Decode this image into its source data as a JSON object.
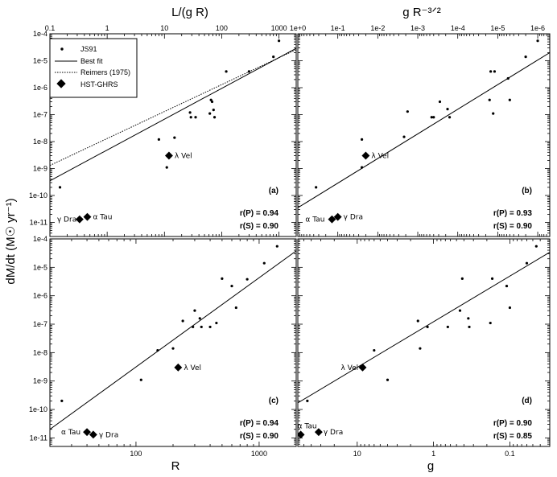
{
  "figure": {
    "y_axis_title": "dM/dt (M☉ yr⁻¹)",
    "top_left_title": "L/(g R)",
    "top_right_title": "g R⁻³ᐟ²",
    "bottom_left_title": "R",
    "bottom_right_title": "g"
  },
  "legend": {
    "js91": "JS91",
    "best_fit": "Best fit",
    "reimers": "Reimers (1975)",
    "hst": "HST-GHRS"
  },
  "chart_data": [
    {
      "type": "scatter",
      "panel": "(a)",
      "xlabel": "L/(g R)",
      "ylabel": "dM/dt (M☉ yr⁻¹)",
      "x_scale": "log",
      "y_scale": "log",
      "xlim": [
        0.1,
        2000
      ],
      "ylim": [
        3e-12,
        0.0001
      ],
      "x_tick_labels": [
        "0.1",
        "1",
        "10",
        "100",
        "1000"
      ],
      "y_tick_labels": [
        "1e-11",
        "1e-10",
        "1e-9",
        "1e-8",
        "1e-7",
        "1e-6",
        "1e-5",
        "1e-4"
      ],
      "stats": [
        "r(P) = 0.94",
        "r(S) = 0.90"
      ],
      "series": [
        {
          "name": "JS91",
          "points": [
            [
              0.15,
              2e-10
            ],
            [
              8,
              1.2e-08
            ],
            [
              11,
              1.1e-09
            ],
            [
              15,
              1.4e-08
            ],
            [
              28,
              1.2e-07
            ],
            [
              29,
              8e-08
            ],
            [
              35,
              8e-08
            ],
            [
              62,
              1.1e-07
            ],
            [
              65,
              3.5e-07
            ],
            [
              68,
              3e-07
            ],
            [
              72,
              1.5e-07
            ],
            [
              75,
              8e-08
            ],
            [
              120,
              4e-06
            ],
            [
              300,
              4e-06
            ],
            [
              800,
              1.4e-05
            ],
            [
              1000,
              5.5e-05
            ]
          ]
        },
        {
          "name": "HST-GHRS",
          "points": [
            [
              0.33,
              1.3e-11
            ],
            [
              0.45,
              1.6e-11
            ],
            [
              12,
              3e-09
            ]
          ]
        }
      ],
      "best_fit": [
        [
          0.1,
          3.5e-10
        ],
        [
          2000,
          2.9e-05
        ]
      ],
      "reimers": [
        [
          0.1,
          1.3e-09
        ],
        [
          2000,
          2.6e-05
        ]
      ],
      "annotations": [
        {
          "text": "γ Dra",
          "x": 0.33,
          "y": 1.3e-11
        },
        {
          "text": "α Tau",
          "x": 0.45,
          "y": 1.6e-11
        },
        {
          "text": "λ Vel",
          "x": 12,
          "y": 3e-09
        }
      ]
    },
    {
      "type": "scatter",
      "panel": "(b)",
      "xlabel": "g R⁻³ᐟ²",
      "x_scale": "log",
      "x_reversed": true,
      "y_scale": "log",
      "xlim": [
        1,
        5e-07
      ],
      "ylim": [
        3e-12,
        0.0001
      ],
      "x_tick_labels": [
        "1e+0",
        "1e-1",
        "1e-2",
        "1e-3",
        "1e-4",
        "1e-5",
        "1e-6"
      ],
      "stats": [
        "r(P) = 0.93",
        "r(S) = 0.90"
      ],
      "series": [
        {
          "name": "JS91",
          "points": [
            [
              0.35,
              2e-10
            ],
            [
              0.025,
              1.1e-09
            ],
            [
              0.025,
              1.2e-08
            ],
            [
              0.0022,
              1.5e-08
            ],
            [
              0.0018,
              1.3e-07
            ],
            [
              0.00045,
              8e-08
            ],
            [
              0.0004,
              8e-08
            ],
            [
              0.00028,
              3e-07
            ],
            [
              0.00018,
              1.6e-07
            ],
            [
              0.00016,
              8e-08
            ],
            [
              1.6e-05,
              3.5e-07
            ],
            [
              1.5e-05,
              4e-06
            ],
            [
              1.3e-05,
              1.1e-07
            ],
            [
              1.2e-05,
              4e-06
            ],
            [
              5.5e-06,
              2.2e-06
            ],
            [
              5e-06,
              3.5e-07
            ],
            [
              2e-06,
              1.4e-05
            ],
            [
              1e-06,
              5.5e-05
            ]
          ]
        },
        {
          "name": "HST-GHRS",
          "points": [
            [
              0.14,
              1.3e-11
            ],
            [
              0.1,
              1.6e-11
            ],
            [
              0.02,
              3e-09
            ]
          ]
        }
      ],
      "best_fit": [
        [
          1,
          3.5e-11
        ],
        [
          5e-07,
          2e-05
        ]
      ],
      "annotations": [
        {
          "text": "α Tau",
          "x": 0.14,
          "y": 1.3e-11
        },
        {
          "text": "γ Dra",
          "x": 0.1,
          "y": 1.6e-11
        },
        {
          "text": "λ Vel",
          "x": 0.02,
          "y": 3e-09
        }
      ]
    },
    {
      "type": "scatter",
      "panel": "(c)",
      "xlabel": "R",
      "x_scale": "log",
      "y_scale": "log",
      "xlim": [
        20,
        2000
      ],
      "ylim": [
        5e-12,
        0.0001
      ],
      "x_tick_labels": [
        "100",
        "1000"
      ],
      "y_tick_labels": [
        "1e-11",
        "1e-10",
        "1e-9",
        "1e-8",
        "1e-7",
        "1e-6",
        "1e-5",
        "1e-4"
      ],
      "stats": [
        "r(P) = 0.94",
        "r(S) = 0.90"
      ],
      "series": [
        {
          "name": "JS91",
          "points": [
            [
              25,
              2e-10
            ],
            [
              110,
              1.1e-09
            ],
            [
              150,
              1.2e-08
            ],
            [
              200,
              1.4e-08
            ],
            [
              240,
              1.3e-07
            ],
            [
              290,
              8e-08
            ],
            [
              300,
              3e-07
            ],
            [
              330,
              1.6e-07
            ],
            [
              340,
              8e-08
            ],
            [
              400,
              8e-08
            ],
            [
              450,
              1.1e-07
            ],
            [
              500,
              4e-06
            ],
            [
              600,
              2.2e-06
            ],
            [
              650,
              3.8e-07
            ],
            [
              800,
              3.8e-06
            ],
            [
              1100,
              1.4e-05
            ],
            [
              1400,
              5.5e-05
            ]
          ]
        },
        {
          "name": "HST-GHRS",
          "points": [
            [
              40,
              1.6e-11
            ],
            [
              45,
              1.3e-11
            ],
            [
              220,
              3e-09
            ]
          ]
        }
      ],
      "best_fit": [
        [
          20,
          2e-11
        ],
        [
          2000,
          3.8e-05
        ]
      ],
      "annotations": [
        {
          "text": "α Tau",
          "x": 40,
          "y": 1.6e-11
        },
        {
          "text": "γ Dra",
          "x": 45,
          "y": 1.3e-11
        },
        {
          "text": "λ Vel",
          "x": 220,
          "y": 3e-09
        }
      ]
    },
    {
      "type": "scatter",
      "panel": "(d)",
      "xlabel": "g",
      "x_scale": "log",
      "x_reversed": true,
      "y_scale": "log",
      "xlim": [
        60,
        0.03
      ],
      "ylim": [
        5e-12,
        0.0001
      ],
      "x_tick_labels": [
        "10",
        "1",
        "0.1"
      ],
      "stats": [
        "r(P) = 0.90",
        "r(S) = 0.85"
      ],
      "series": [
        {
          "name": "JS91",
          "points": [
            [
              45,
              2e-10
            ],
            [
              6,
              1.2e-08
            ],
            [
              4,
              1.1e-09
            ],
            [
              1.6,
              1.3e-07
            ],
            [
              1.5,
              1.4e-08
            ],
            [
              1.2,
              8e-08
            ],
            [
              0.65,
              8e-08
            ],
            [
              0.45,
              3e-07
            ],
            [
              0.42,
              4e-06
            ],
            [
              0.35,
              1.6e-07
            ],
            [
              0.34,
              8e-08
            ],
            [
              0.18,
              1.1e-07
            ],
            [
              0.17,
              4e-06
            ],
            [
              0.11,
              2.2e-06
            ],
            [
              0.1,
              3.8e-07
            ],
            [
              0.06,
              1.4e-05
            ],
            [
              0.045,
              5.5e-05
            ]
          ]
        },
        {
          "name": "HST-GHRS",
          "points": [
            [
              55,
              1.3e-11
            ],
            [
              32,
              1.6e-11
            ],
            [
              8.5,
              3e-09
            ]
          ]
        }
      ],
      "best_fit": [
        [
          60,
          1.7e-10
        ],
        [
          0.03,
          3.4e-05
        ]
      ],
      "annotations": [
        {
          "text": "α Tau",
          "x": 55,
          "y": 1.3e-11
        },
        {
          "text": "γ Dra",
          "x": 32,
          "y": 1.6e-11
        },
        {
          "text": "λ Vel",
          "x": 8.5,
          "y": 3e-09
        }
      ]
    }
  ]
}
